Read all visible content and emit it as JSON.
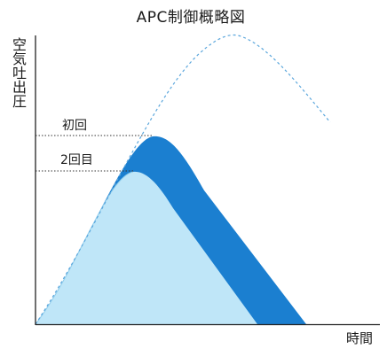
{
  "title": "APC制御概略図",
  "y_axis_label": "空気吐出圧",
  "x_axis_label": "時間",
  "annotations": {
    "first": "初回",
    "second": "2回目"
  },
  "colors": {
    "first_curve": "#1b7fd0",
    "second_curve": "#bfe6f8",
    "dashed_curve": "#5aa6dc",
    "axis": "#222222",
    "guide": "#333333"
  }
}
